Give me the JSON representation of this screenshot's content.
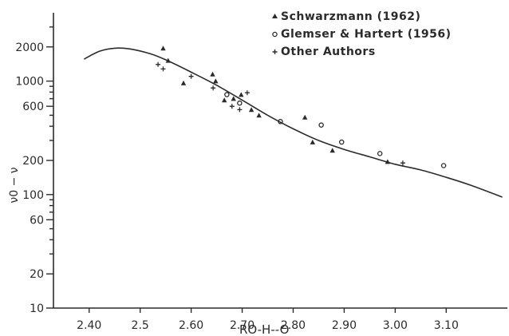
{
  "chart_data": {
    "type": "scatter",
    "title": "",
    "xlabel": "RO-H--O",
    "ylabel": "ν0 − ν",
    "xscale": "linear",
    "yscale": "log",
    "xlim": [
      2.33,
      3.22
    ],
    "ylim": [
      10,
      4000
    ],
    "x_ticks": [
      2.4,
      2.5,
      2.6,
      2.7,
      2.8,
      2.9,
      3.0,
      3.1
    ],
    "x_tick_labels": [
      "2.40",
      "2.5",
      "2.60",
      "2.70",
      "2.80",
      "2.90",
      "3.00",
      "3.10"
    ],
    "y_ticks": [
      10,
      20,
      60,
      100,
      200,
      600,
      1000,
      2000
    ],
    "y_tick_labels": [
      "10",
      "20",
      "60",
      "100",
      "200",
      "600",
      "1000",
      "2000"
    ],
    "grid": false,
    "legend_position": "top-right",
    "series": [
      {
        "name": "Schwarzmann (1962)",
        "marker": "triangle",
        "points": [
          {
            "x": 2.545,
            "y": 1950
          },
          {
            "x": 2.555,
            "y": 1520
          },
          {
            "x": 2.585,
            "y": 960
          },
          {
            "x": 2.642,
            "y": 1150
          },
          {
            "x": 2.648,
            "y": 1000
          },
          {
            "x": 2.665,
            "y": 680
          },
          {
            "x": 2.683,
            "y": 700
          },
          {
            "x": 2.698,
            "y": 760
          },
          {
            "x": 2.718,
            "y": 560
          },
          {
            "x": 2.733,
            "y": 500
          },
          {
            "x": 2.823,
            "y": 480
          },
          {
            "x": 2.838,
            "y": 290
          },
          {
            "x": 2.877,
            "y": 245
          },
          {
            "x": 2.985,
            "y": 195
          }
        ]
      },
      {
        "name": "Glemser & Hartert (1956)",
        "marker": "circle",
        "points": [
          {
            "x": 2.67,
            "y": 760
          },
          {
            "x": 2.695,
            "y": 640
          },
          {
            "x": 2.775,
            "y": 440
          },
          {
            "x": 2.855,
            "y": 410
          },
          {
            "x": 2.895,
            "y": 290
          },
          {
            "x": 2.97,
            "y": 230
          },
          {
            "x": 3.095,
            "y": 180
          }
        ]
      },
      {
        "name": "Other Authors",
        "marker": "plus",
        "points": [
          {
            "x": 2.535,
            "y": 1400
          },
          {
            "x": 2.545,
            "y": 1280
          },
          {
            "x": 2.6,
            "y": 1100
          },
          {
            "x": 2.643,
            "y": 870
          },
          {
            "x": 2.68,
            "y": 600
          },
          {
            "x": 2.695,
            "y": 560
          },
          {
            "x": 2.71,
            "y": 790
          },
          {
            "x": 3.015,
            "y": 190
          }
        ]
      },
      {
        "name": "",
        "marker": "line",
        "points": [
          {
            "x": 2.39,
            "y": 1560
          },
          {
            "x": 2.42,
            "y": 1830
          },
          {
            "x": 2.45,
            "y": 1950
          },
          {
            "x": 2.48,
            "y": 1920
          },
          {
            "x": 2.52,
            "y": 1740
          },
          {
            "x": 2.55,
            "y": 1540
          },
          {
            "x": 2.6,
            "y": 1200
          },
          {
            "x": 2.65,
            "y": 920
          },
          {
            "x": 2.7,
            "y": 680
          },
          {
            "x": 2.75,
            "y": 500
          },
          {
            "x": 2.8,
            "y": 380
          },
          {
            "x": 2.85,
            "y": 300
          },
          {
            "x": 2.9,
            "y": 250
          },
          {
            "x": 2.95,
            "y": 215
          },
          {
            "x": 3.0,
            "y": 185
          },
          {
            "x": 3.05,
            "y": 165
          },
          {
            "x": 3.1,
            "y": 142
          },
          {
            "x": 3.15,
            "y": 120
          },
          {
            "x": 3.21,
            "y": 95
          }
        ]
      }
    ]
  }
}
